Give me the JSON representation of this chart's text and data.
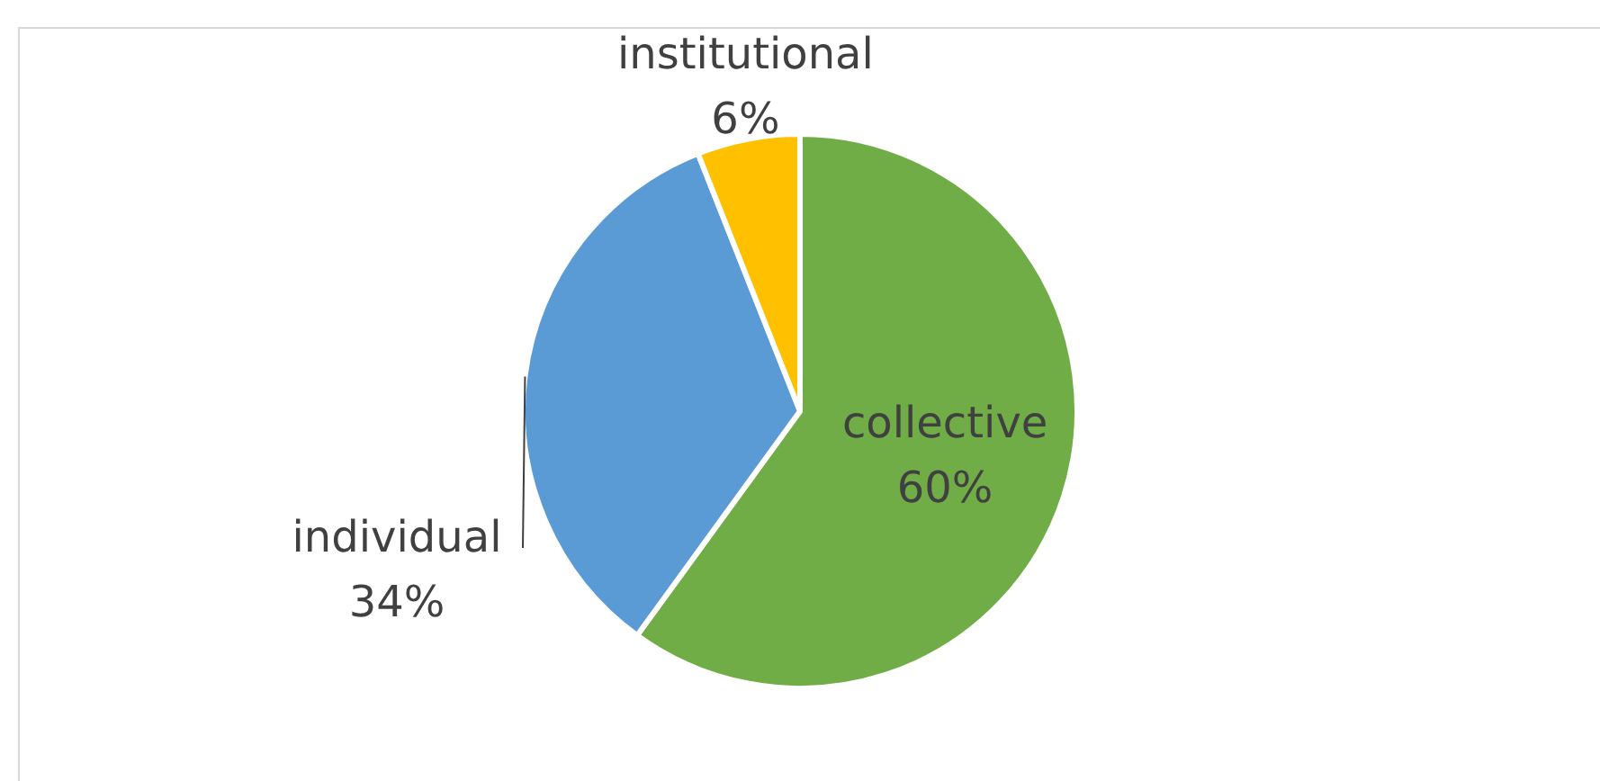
{
  "chart_data": {
    "type": "pie",
    "categories": [
      "collective",
      "individual",
      "institutional"
    ],
    "values": [
      60,
      34,
      6
    ],
    "colors": [
      "#70ad47",
      "#5b9bd5",
      "#ffc000"
    ],
    "value_labels": [
      "60%",
      "34%",
      "6%"
    ],
    "legend": false
  }
}
